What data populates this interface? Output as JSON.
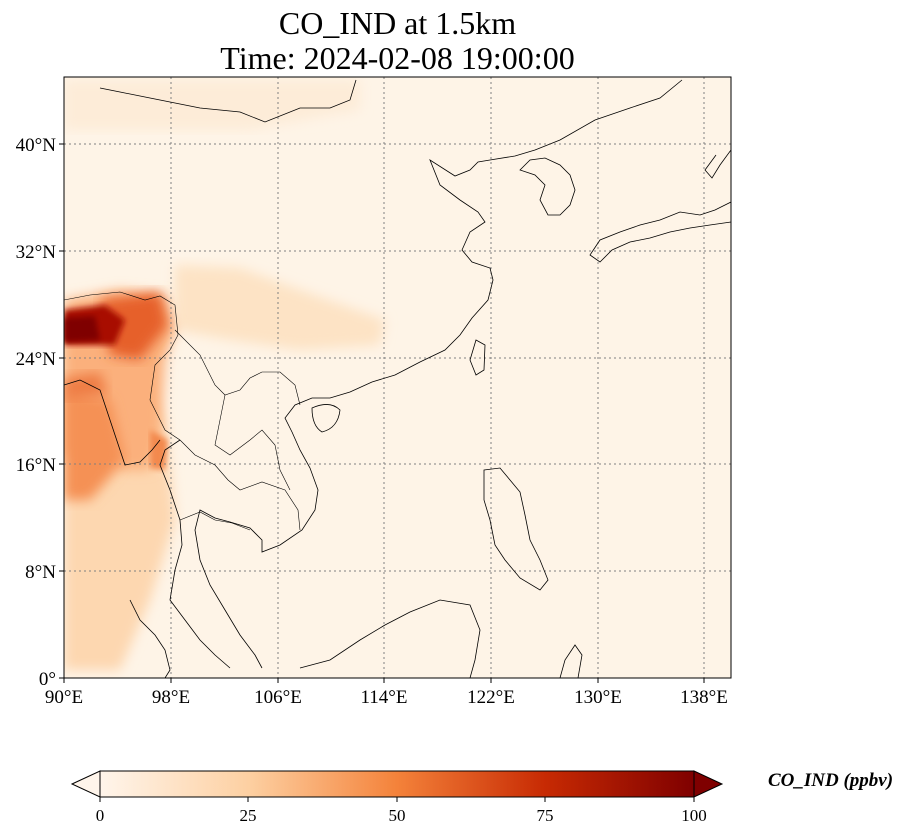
{
  "title_line1": "CO_IND at 1.5km",
  "title_line2": "Time: 2024-02-08 19:00:00",
  "axes": {
    "lon_ticks": [
      "90°E",
      "98°E",
      "106°E",
      "114°E",
      "122°E",
      "130°E",
      "138°E"
    ],
    "lat_ticks": [
      "0°",
      "8°N",
      "16°N",
      "24°N",
      "32°N",
      "40°N"
    ],
    "lon_range": [
      90,
      140
    ],
    "lat_range": [
      0,
      45
    ],
    "gridlines": "dotted"
  },
  "colorbar": {
    "label": "CO_IND (ppbv)",
    "ticks": [
      "0",
      "25",
      "50",
      "75",
      "100"
    ],
    "range": [
      0,
      100
    ],
    "extend": "both",
    "colors": [
      "#fff5eb",
      "#fdd0a2",
      "#fd8d3c",
      "#d94801",
      "#7f2704"
    ]
  }
}
